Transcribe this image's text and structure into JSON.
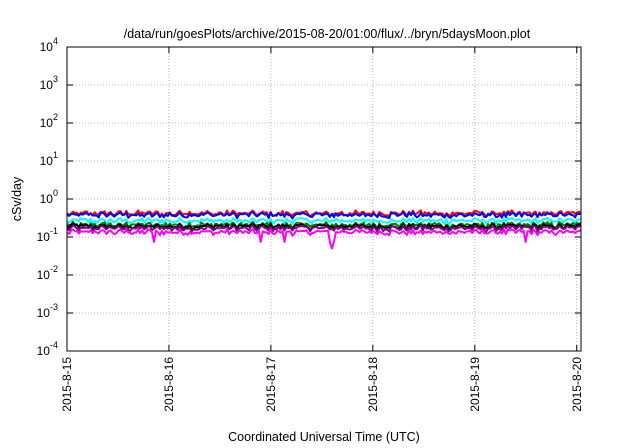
{
  "chart_data": {
    "type": "line",
    "title": "/data/run/goesPlots/archive/2015-08-20/01:00/flux/../bryn/5daysMoon.plot",
    "xlabel": "Coordinated Universal Time (UTC)",
    "ylabel": "cSv/day",
    "yscale": "log",
    "ylim": [
      0.0001,
      10000
    ],
    "xlim": [
      "2015-8-15",
      "2015-8-20 01:00"
    ],
    "grid": true,
    "xticks": [
      "2015-8-15",
      "2015-8-16",
      "2015-8-17",
      "2015-8-18",
      "2015-8-19",
      "2015-8-20"
    ],
    "yticks": [
      {
        "base": "10",
        "exp": "-4",
        "value": 0.0001
      },
      {
        "base": "10",
        "exp": "-3",
        "value": 0.001
      },
      {
        "base": "10",
        "exp": "-2",
        "value": 0.01
      },
      {
        "base": "10",
        "exp": "-1",
        "value": 0.1
      },
      {
        "base": "10",
        "exp": "0",
        "value": 1
      },
      {
        "base": "10",
        "exp": "1",
        "value": 10
      },
      {
        "base": "10",
        "exp": "2",
        "value": 100
      },
      {
        "base": "10",
        "exp": "3",
        "value": 1000
      },
      {
        "base": "10",
        "exp": "4",
        "value": 10000
      }
    ],
    "series": [
      {
        "color": "#ff0000",
        "base": 0.42
      },
      {
        "color": "#0000ff",
        "base": 0.38
      },
      {
        "color": "#00ffff",
        "base": 0.27
      },
      {
        "color": "#008000",
        "base": 0.21
      },
      {
        "color": "#000000",
        "base": 0.19
      },
      {
        "color": "#800080",
        "base": 0.17
      },
      {
        "color": "#ff00ff",
        "base": 0.135
      }
    ]
  }
}
